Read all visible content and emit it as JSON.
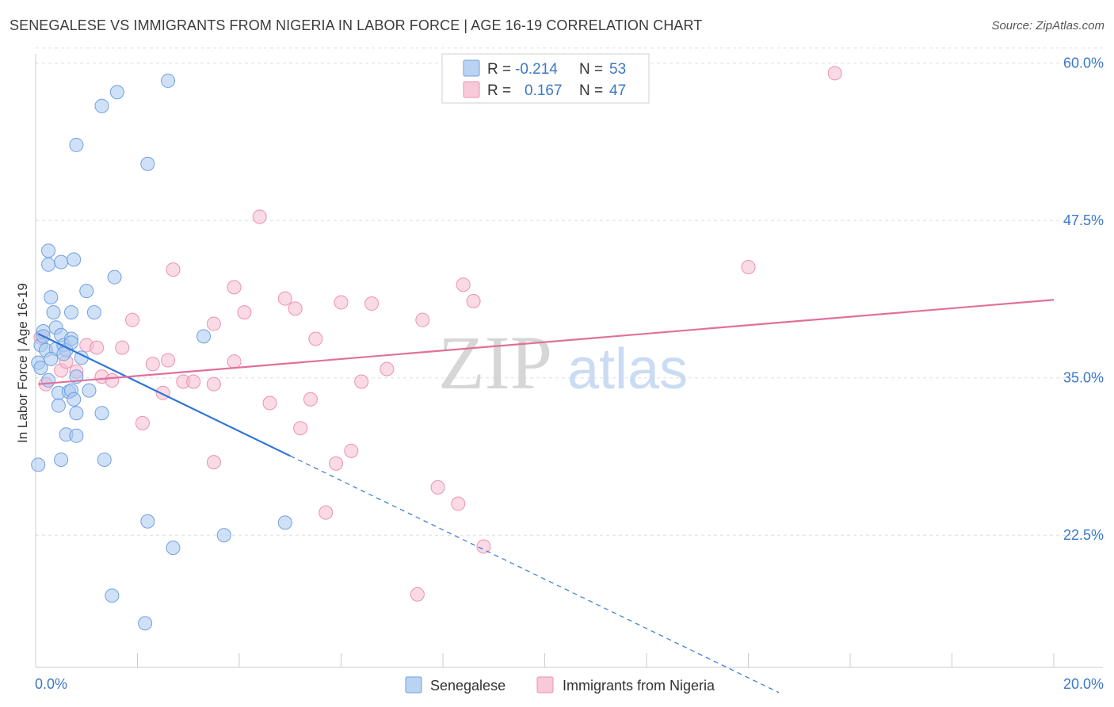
{
  "title": "SENEGALESE VS IMMIGRANTS FROM NIGERIA IN LABOR FORCE | AGE 16-19 CORRELATION CHART",
  "source": "Source: ZipAtlas.com",
  "watermark": {
    "zip": "ZIP",
    "atlas": "atlas"
  },
  "colors": {
    "blue_fill": "#a9c8f0",
    "blue_stroke": "#6fa0e0",
    "blue_line": "#2e74d3",
    "pink_fill": "#f6bcd0",
    "pink_stroke": "#ec92b2",
    "pink_line": "#e0709a",
    "grid": "#dddddd",
    "axis_text": "#3a78c9"
  },
  "legend": {
    "r_label": "R =",
    "n_label": "N =",
    "rows": [
      {
        "r": "-0.214",
        "n": "53"
      },
      {
        "r": "0.167",
        "n": "47"
      }
    ]
  },
  "chart_data": {
    "type": "scatter",
    "xlabel": "",
    "ylabel": "In Labor Force | Age 16-19",
    "xlim": [
      0,
      20
    ],
    "ylim": [
      12,
      62.5
    ],
    "x_tick_labels": [
      "0.0%",
      "20.0%"
    ],
    "y_ticks": [
      22.5,
      35.0,
      47.5,
      60.0
    ],
    "y_tick_labels": [
      "22.5%",
      "35.0%",
      "47.5%",
      "60.0%"
    ],
    "grid": true,
    "series": [
      {
        "name": "Senegalese",
        "color": "blue",
        "points": [
          [
            0.05,
            36.2
          ],
          [
            0.1,
            37.6
          ],
          [
            0.15,
            38.7
          ],
          [
            0.2,
            37.2
          ],
          [
            0.25,
            34.8
          ],
          [
            0.1,
            35.8
          ],
          [
            0.05,
            28.1
          ],
          [
            0.25,
            45.1
          ],
          [
            0.25,
            44.0
          ],
          [
            0.3,
            41.4
          ],
          [
            0.35,
            40.2
          ],
          [
            0.4,
            39.0
          ],
          [
            0.4,
            37.3
          ],
          [
            0.45,
            33.8
          ],
          [
            0.45,
            32.8
          ],
          [
            0.5,
            38.4
          ],
          [
            0.5,
            44.2
          ],
          [
            0.5,
            28.5
          ],
          [
            0.55,
            37.6
          ],
          [
            0.6,
            37.2
          ],
          [
            0.6,
            30.5
          ],
          [
            0.65,
            33.9
          ],
          [
            0.7,
            38.1
          ],
          [
            0.7,
            37.8
          ],
          [
            0.7,
            34.0
          ],
          [
            0.7,
            40.2
          ],
          [
            0.75,
            44.4
          ],
          [
            0.75,
            33.3
          ],
          [
            0.8,
            30.4
          ],
          [
            0.8,
            32.2
          ],
          [
            0.8,
            35.1
          ],
          [
            0.8,
            53.5
          ],
          [
            0.9,
            36.6
          ],
          [
            1.0,
            41.9
          ],
          [
            1.05,
            34.0
          ],
          [
            1.15,
            40.2
          ],
          [
            1.3,
            32.2
          ],
          [
            1.3,
            56.6
          ],
          [
            1.35,
            28.5
          ],
          [
            1.5,
            17.7
          ],
          [
            1.55,
            43.0
          ],
          [
            1.6,
            57.7
          ],
          [
            2.15,
            15.5
          ],
          [
            2.2,
            52.0
          ],
          [
            2.2,
            23.6
          ],
          [
            2.6,
            58.6
          ],
          [
            2.7,
            21.5
          ],
          [
            3.3,
            38.3
          ],
          [
            3.7,
            22.5
          ],
          [
            4.9,
            23.5
          ],
          [
            0.3,
            36.5
          ],
          [
            0.15,
            38.3
          ],
          [
            0.55,
            36.9
          ]
        ]
      },
      {
        "name": "Immigrants from Nigeria",
        "color": "pink",
        "points": [
          [
            0.1,
            38.2
          ],
          [
            0.2,
            34.5
          ],
          [
            0.5,
            35.6
          ],
          [
            0.6,
            36.3
          ],
          [
            1.0,
            37.6
          ],
          [
            1.2,
            37.4
          ],
          [
            1.3,
            35.1
          ],
          [
            1.5,
            34.8
          ],
          [
            1.7,
            37.4
          ],
          [
            1.9,
            39.6
          ],
          [
            2.1,
            31.4
          ],
          [
            2.3,
            36.1
          ],
          [
            2.5,
            33.8
          ],
          [
            2.6,
            36.4
          ],
          [
            2.7,
            43.6
          ],
          [
            2.9,
            34.7
          ],
          [
            3.1,
            34.7
          ],
          [
            3.5,
            34.5
          ],
          [
            3.5,
            28.3
          ],
          [
            3.5,
            39.3
          ],
          [
            3.9,
            42.2
          ],
          [
            3.9,
            36.3
          ],
          [
            4.1,
            40.2
          ],
          [
            4.4,
            47.8
          ],
          [
            4.6,
            33.0
          ],
          [
            4.9,
            41.3
          ],
          [
            5.1,
            40.5
          ],
          [
            5.2,
            31.0
          ],
          [
            5.4,
            33.3
          ],
          [
            5.5,
            38.1
          ],
          [
            5.7,
            24.3
          ],
          [
            5.9,
            28.2
          ],
          [
            6.0,
            41.0
          ],
          [
            6.2,
            29.2
          ],
          [
            6.4,
            34.7
          ],
          [
            6.6,
            40.9
          ],
          [
            6.9,
            35.7
          ],
          [
            7.5,
            17.8
          ],
          [
            7.6,
            39.6
          ],
          [
            7.9,
            26.3
          ],
          [
            8.3,
            25.0
          ],
          [
            8.4,
            42.4
          ],
          [
            8.6,
            41.1
          ],
          [
            8.8,
            21.6
          ],
          [
            14.0,
            43.8
          ],
          [
            15.7,
            59.2
          ],
          [
            0.8,
            35.5
          ]
        ]
      }
    ],
    "trend_lines": [
      {
        "series": "Senegalese",
        "solid": [
          [
            0.05,
            38.5
          ],
          [
            5.0,
            28.8
          ]
        ],
        "dashed": [
          [
            5.0,
            28.8
          ],
          [
            14.6,
            10.0
          ]
        ]
      },
      {
        "series": "Immigrants from Nigeria",
        "solid": [
          [
            0.05,
            34.5
          ],
          [
            20.0,
            41.2
          ]
        ]
      }
    ]
  }
}
